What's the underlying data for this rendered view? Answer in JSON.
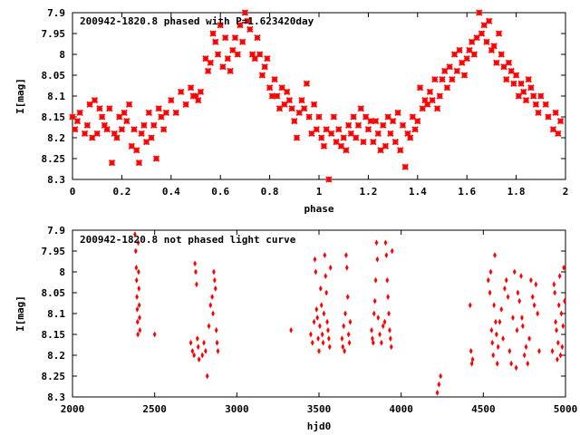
{
  "chart_data": [
    {
      "type": "scatter",
      "title": "200942-1820.8 phased with P=1.623420day",
      "xlabel": "phase",
      "ylabel": "I[mag]",
      "xlim": [
        0,
        2
      ],
      "ylim": [
        8.3,
        7.9
      ],
      "y_inverted": true,
      "grid": false,
      "marker_color": "#ff0000",
      "marker": "star",
      "xticks": [
        "0",
        "0.2",
        "0.4",
        "0.6",
        "0.8",
        "1",
        "1.2",
        "1.4",
        "1.6",
        "1.8",
        "2"
      ],
      "yticks": [
        "7.9",
        "7.95",
        "8",
        "8.05",
        "8.1",
        "8.15",
        "8.2",
        "8.25",
        "8.3"
      ],
      "points": [
        [
          0.0,
          8.15
        ],
        [
          0.01,
          8.18
        ],
        [
          0.02,
          8.16
        ],
        [
          0.03,
          8.14
        ],
        [
          0.05,
          8.19
        ],
        [
          0.06,
          8.17
        ],
        [
          0.07,
          8.12
        ],
        [
          0.08,
          8.2
        ],
        [
          0.09,
          8.11
        ],
        [
          0.1,
          8.19
        ],
        [
          0.11,
          8.13
        ],
        [
          0.12,
          8.15
        ],
        [
          0.13,
          8.17
        ],
        [
          0.14,
          8.18
        ],
        [
          0.15,
          8.13
        ],
        [
          0.16,
          8.26
        ],
        [
          0.17,
          8.19
        ],
        [
          0.18,
          8.2
        ],
        [
          0.19,
          8.15
        ],
        [
          0.2,
          8.18
        ],
        [
          0.21,
          8.14
        ],
        [
          0.22,
          8.16
        ],
        [
          0.23,
          8.12
        ],
        [
          0.24,
          8.22
        ],
        [
          0.25,
          8.18
        ],
        [
          0.26,
          8.23
        ],
        [
          0.27,
          8.26
        ],
        [
          0.28,
          8.19
        ],
        [
          0.29,
          8.17
        ],
        [
          0.3,
          8.21
        ],
        [
          0.31,
          8.14
        ],
        [
          0.32,
          8.2
        ],
        [
          0.33,
          8.17
        ],
        [
          0.34,
          8.25
        ],
        [
          0.35,
          8.13
        ],
        [
          0.36,
          8.15
        ],
        [
          0.37,
          8.18
        ],
        [
          0.38,
          8.14
        ],
        [
          0.4,
          8.11
        ],
        [
          0.42,
          8.14
        ],
        [
          0.44,
          8.09
        ],
        [
          0.46,
          8.12
        ],
        [
          0.48,
          8.08
        ],
        [
          0.49,
          8.1
        ],
        [
          0.5,
          8.1
        ],
        [
          0.51,
          8.11
        ],
        [
          0.52,
          8.09
        ],
        [
          0.54,
          8.01
        ],
        [
          0.55,
          8.04
        ],
        [
          0.56,
          8.02
        ],
        [
          0.57,
          7.95
        ],
        [
          0.58,
          7.97
        ],
        [
          0.59,
          8.0
        ],
        [
          0.6,
          7.93
        ],
        [
          0.61,
          8.03
        ],
        [
          0.62,
          7.96
        ],
        [
          0.63,
          8.01
        ],
        [
          0.64,
          8.04
        ],
        [
          0.65,
          7.99
        ],
        [
          0.66,
          7.96
        ],
        [
          0.67,
          8.0
        ],
        [
          0.68,
          7.93
        ],
        [
          0.69,
          7.97
        ],
        [
          0.7,
          7.9
        ],
        [
          0.71,
          7.92
        ],
        [
          0.72,
          7.94
        ],
        [
          0.73,
          8.0
        ],
        [
          0.74,
          8.01
        ],
        [
          0.75,
          7.96
        ],
        [
          0.76,
          8.0
        ],
        [
          0.77,
          8.05
        ],
        [
          0.78,
          8.03
        ],
        [
          0.79,
          8.01
        ],
        [
          0.8,
          8.08
        ],
        [
          0.81,
          8.1
        ],
        [
          0.82,
          8.06
        ],
        [
          0.83,
          8.1
        ],
        [
          0.84,
          8.13
        ],
        [
          0.85,
          8.08
        ],
        [
          0.86,
          8.12
        ],
        [
          0.87,
          8.09
        ],
        [
          0.88,
          8.11
        ],
        [
          0.89,
          8.13
        ],
        [
          0.9,
          8.16
        ],
        [
          0.91,
          8.2
        ],
        [
          0.92,
          8.14
        ],
        [
          0.93,
          8.11
        ],
        [
          0.94,
          8.13
        ],
        [
          0.95,
          8.07
        ],
        [
          0.96,
          8.15
        ],
        [
          0.97,
          8.19
        ],
        [
          0.98,
          8.12
        ],
        [
          0.99,
          8.18
        ],
        [
          1.0,
          8.15
        ],
        [
          1.01,
          8.2
        ],
        [
          1.02,
          8.22
        ],
        [
          1.03,
          8.18
        ],
        [
          1.04,
          8.3
        ],
        [
          1.05,
          8.19
        ],
        [
          1.06,
          8.15
        ],
        [
          1.07,
          8.21
        ],
        [
          1.08,
          8.18
        ],
        [
          1.09,
          8.22
        ],
        [
          1.1,
          8.2
        ],
        [
          1.11,
          8.23
        ],
        [
          1.12,
          8.17
        ],
        [
          1.13,
          8.19
        ],
        [
          1.14,
          8.15
        ],
        [
          1.15,
          8.2
        ],
        [
          1.16,
          8.17
        ],
        [
          1.17,
          8.13
        ],
        [
          1.18,
          8.21
        ],
        [
          1.19,
          8.15
        ],
        [
          1.2,
          8.18
        ],
        [
          1.21,
          8.16
        ],
        [
          1.22,
          8.21
        ],
        [
          1.23,
          8.16
        ],
        [
          1.24,
          8.19
        ],
        [
          1.25,
          8.23
        ],
        [
          1.26,
          8.17
        ],
        [
          1.27,
          8.22
        ],
        [
          1.28,
          8.15
        ],
        [
          1.29,
          8.19
        ],
        [
          1.3,
          8.16
        ],
        [
          1.31,
          8.21
        ],
        [
          1.32,
          8.14
        ],
        [
          1.33,
          8.23
        ],
        [
          1.34,
          8.17
        ],
        [
          1.35,
          8.27
        ],
        [
          1.36,
          8.19
        ],
        [
          1.37,
          8.2
        ],
        [
          1.38,
          8.15
        ],
        [
          1.39,
          8.18
        ],
        [
          1.4,
          8.16
        ],
        [
          1.41,
          8.08
        ],
        [
          1.42,
          8.13
        ],
        [
          1.43,
          8.11
        ],
        [
          1.44,
          8.12
        ],
        [
          1.45,
          8.09
        ],
        [
          1.46,
          8.11
        ],
        [
          1.47,
          8.06
        ],
        [
          1.48,
          8.13
        ],
        [
          1.49,
          8.1
        ],
        [
          1.5,
          8.06
        ],
        [
          1.51,
          8.04
        ],
        [
          1.52,
          8.08
        ],
        [
          1.53,
          8.03
        ],
        [
          1.54,
          8.06
        ],
        [
          1.55,
          8.0
        ],
        [
          1.56,
          8.04
        ],
        [
          1.57,
          7.99
        ],
        [
          1.58,
          8.02
        ],
        [
          1.59,
          8.05
        ],
        [
          1.6,
          8.01
        ],
        [
          1.61,
          7.99
        ],
        [
          1.62,
          7.97
        ],
        [
          1.63,
          8.0
        ],
        [
          1.64,
          7.96
        ],
        [
          1.65,
          7.9
        ],
        [
          1.66,
          7.95
        ],
        [
          1.67,
          7.93
        ],
        [
          1.68,
          7.97
        ],
        [
          1.69,
          7.92
        ],
        [
          1.7,
          7.99
        ],
        [
          1.71,
          7.98
        ],
        [
          1.72,
          8.02
        ],
        [
          1.73,
          7.95
        ],
        [
          1.74,
          8.0
        ],
        [
          1.75,
          8.03
        ],
        [
          1.76,
          8.06
        ],
        [
          1.77,
          8.02
        ],
        [
          1.78,
          8.04
        ],
        [
          1.79,
          8.07
        ],
        [
          1.8,
          8.05
        ],
        [
          1.81,
          8.1
        ],
        [
          1.82,
          8.07
        ],
        [
          1.83,
          8.09
        ],
        [
          1.84,
          8.11
        ],
        [
          1.85,
          8.06
        ],
        [
          1.86,
          8.08
        ],
        [
          1.87,
          8.1
        ],
        [
          1.88,
          8.12
        ],
        [
          1.89,
          8.14
        ],
        [
          1.9,
          8.1
        ],
        [
          1.92,
          8.12
        ],
        [
          1.93,
          8.15
        ],
        [
          1.95,
          8.18
        ],
        [
          1.96,
          8.14
        ],
        [
          1.97,
          8.19
        ],
        [
          1.98,
          8.16
        ]
      ]
    },
    {
      "type": "scatter",
      "title": "200942-1820.8 not phased light curve",
      "xlabel": "hjd0",
      "ylabel": "I[mag]",
      "xlim": [
        2000,
        5000
      ],
      "ylim": [
        8.3,
        7.9
      ],
      "y_inverted": true,
      "grid": false,
      "marker_color": "#ff0000",
      "marker": "diamond",
      "xticks": [
        "2000",
        "2500",
        "3000",
        "3500",
        "4000",
        "4500",
        "5000"
      ],
      "yticks": [
        "7.9",
        "7.95",
        "8",
        "8.05",
        "8.1",
        "8.15",
        "8.2",
        "8.25",
        "8.3"
      ],
      "points": [
        [
          2380,
          7.91
        ],
        [
          2385,
          7.95
        ],
        [
          2388,
          7.99
        ],
        [
          2390,
          8.02
        ],
        [
          2392,
          8.06
        ],
        [
          2394,
          8.09
        ],
        [
          2396,
          8.12
        ],
        [
          2398,
          8.15
        ],
        [
          2400,
          7.93
        ],
        [
          2402,
          8.0
        ],
        [
          2404,
          8.04
        ],
        [
          2406,
          8.08
        ],
        [
          2408,
          8.11
        ],
        [
          2410,
          8.14
        ],
        [
          2500,
          8.15
        ],
        [
          2720,
          8.17
        ],
        [
          2730,
          8.19
        ],
        [
          2740,
          8.2
        ],
        [
          2745,
          7.98
        ],
        [
          2750,
          8.0
        ],
        [
          2755,
          8.03
        ],
        [
          2760,
          8.16
        ],
        [
          2765,
          8.18
        ],
        [
          2770,
          8.21
        ],
        [
          2790,
          8.2
        ],
        [
          2800,
          8.17
        ],
        [
          2810,
          8.19
        ],
        [
          2820,
          8.25
        ],
        [
          2830,
          8.13
        ],
        [
          2840,
          8.08
        ],
        [
          2850,
          8.06
        ],
        [
          2855,
          8.1
        ],
        [
          2860,
          8.0
        ],
        [
          2865,
          8.02
        ],
        [
          2870,
          8.04
        ],
        [
          2875,
          8.14
        ],
        [
          2880,
          8.17
        ],
        [
          2885,
          8.19
        ],
        [
          3330,
          8.14
        ],
        [
          3450,
          8.15
        ],
        [
          3460,
          8.17
        ],
        [
          3470,
          8.12
        ],
        [
          3475,
          7.97
        ],
        [
          3480,
          8.0
        ],
        [
          3485,
          8.09
        ],
        [
          3490,
          8.11
        ],
        [
          3495,
          8.16
        ],
        [
          3500,
          8.19
        ],
        [
          3505,
          8.13
        ],
        [
          3510,
          8.04
        ],
        [
          3515,
          8.08
        ],
        [
          3520,
          8.15
        ],
        [
          3525,
          8.17
        ],
        [
          3530,
          8.1
        ],
        [
          3535,
          7.96
        ],
        [
          3540,
          8.01
        ],
        [
          3545,
          8.05
        ],
        [
          3550,
          8.12
        ],
        [
          3555,
          8.14
        ],
        [
          3560,
          8.16
        ],
        [
          3565,
          8.18
        ],
        [
          3570,
          7.99
        ],
        [
          3640,
          8.16
        ],
        [
          3645,
          8.18
        ],
        [
          3650,
          8.13
        ],
        [
          3655,
          8.19
        ],
        [
          3660,
          8.1
        ],
        [
          3665,
          7.96
        ],
        [
          3670,
          7.99
        ],
        [
          3675,
          8.06
        ],
        [
          3680,
          8.15
        ],
        [
          3685,
          8.17
        ],
        [
          3690,
          8.12
        ],
        [
          3820,
          8.14
        ],
        [
          3825,
          8.16
        ],
        [
          3830,
          8.17
        ],
        [
          3835,
          8.1
        ],
        [
          3840,
          8.07
        ],
        [
          3845,
          8.02
        ],
        [
          3850,
          7.93
        ],
        [
          3855,
          7.97
        ],
        [
          3860,
          8.11
        ],
        [
          3870,
          8.15
        ],
        [
          3880,
          8.17
        ],
        [
          3890,
          8.13
        ],
        [
          3900,
          8.12
        ],
        [
          3905,
          7.93
        ],
        [
          3910,
          7.96
        ],
        [
          3915,
          8.02
        ],
        [
          3920,
          8.06
        ],
        [
          3925,
          8.1
        ],
        [
          3930,
          8.14
        ],
        [
          3935,
          8.16
        ],
        [
          3940,
          8.18
        ],
        [
          3945,
          7.95
        ],
        [
          4220,
          8.29
        ],
        [
          4230,
          8.27
        ],
        [
          4240,
          8.25
        ],
        [
          4420,
          8.08
        ],
        [
          4425,
          8.19
        ],
        [
          4430,
          8.22
        ],
        [
          4435,
          8.21
        ],
        [
          4530,
          8.02
        ],
        [
          4540,
          8.05
        ],
        [
          4545,
          8.0
        ],
        [
          4550,
          8.14
        ],
        [
          4555,
          8.17
        ],
        [
          4560,
          8.2
        ],
        [
          4565,
          8.08
        ],
        [
          4570,
          7.96
        ],
        [
          4575,
          8.12
        ],
        [
          4580,
          8.15
        ],
        [
          4585,
          8.22
        ],
        [
          4590,
          8.18
        ],
        [
          4600,
          8.12
        ],
        [
          4610,
          8.09
        ],
        [
          4620,
          8.16
        ],
        [
          4630,
          8.04
        ],
        [
          4640,
          8.02
        ],
        [
          4650,
          8.06
        ],
        [
          4660,
          8.19
        ],
        [
          4670,
          8.22
        ],
        [
          4680,
          8.11
        ],
        [
          4690,
          8.0
        ],
        [
          4700,
          8.23
        ],
        [
          4705,
          8.14
        ],
        [
          4710,
          8.05
        ],
        [
          4720,
          8.07
        ],
        [
          4730,
          8.01
        ],
        [
          4735,
          8.11
        ],
        [
          4740,
          8.13
        ],
        [
          4750,
          8.2
        ],
        [
          4760,
          8.18
        ],
        [
          4770,
          8.22
        ],
        [
          4780,
          8.16
        ],
        [
          4790,
          8.02
        ],
        [
          4800,
          8.06
        ],
        [
          4810,
          8.08
        ],
        [
          4820,
          8.03
        ],
        [
          4830,
          8.1
        ],
        [
          4840,
          8.19
        ],
        [
          4920,
          8.19
        ],
        [
          4930,
          8.03
        ],
        [
          4935,
          8.05
        ],
        [
          4940,
          8.12
        ],
        [
          4945,
          8.14
        ],
        [
          4950,
          8.21
        ],
        [
          4955,
          8.17
        ],
        [
          4960,
          8.08
        ],
        [
          4965,
          8.01
        ],
        [
          4970,
          8.2
        ],
        [
          4975,
          8.1
        ],
        [
          4980,
          8.18
        ],
        [
          4985,
          8.13
        ],
        [
          4990,
          7.99
        ],
        [
          4995,
          8.07
        ]
      ]
    }
  ]
}
